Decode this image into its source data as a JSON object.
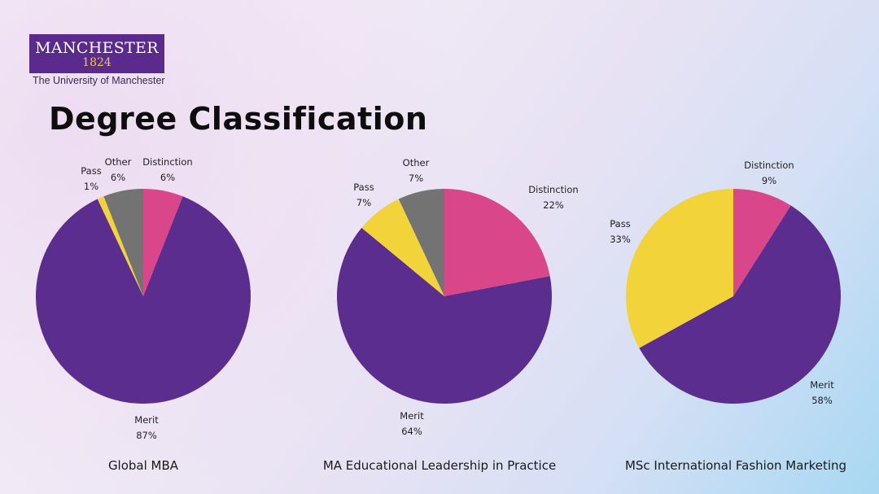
{
  "logo": {
    "word": "MANCHESTER",
    "year": "1824",
    "tagline": "The University of Manchester"
  },
  "title": "Degree Classification",
  "colors": {
    "Distinction": "#d9478a",
    "Merit": "#5b2d8e",
    "Pass": "#f2d33a",
    "Other": "#737373"
  },
  "chart_data": [
    {
      "type": "pie",
      "title": "Global MBA",
      "slices": [
        {
          "label": "Distinction",
          "value": 6,
          "text": "6%"
        },
        {
          "label": "Merit",
          "value": 87,
          "text": "87%"
        },
        {
          "label": "Pass",
          "value": 1,
          "text": "1%"
        },
        {
          "label": "Other",
          "value": 6,
          "text": "6%"
        }
      ]
    },
    {
      "type": "pie",
      "title": "MA Educational Leadership in Practice",
      "slices": [
        {
          "label": "Distinction",
          "value": 22,
          "text": "22%"
        },
        {
          "label": "Merit",
          "value": 64,
          "text": "64%"
        },
        {
          "label": "Pass",
          "value": 7,
          "text": "7%"
        },
        {
          "label": "Other",
          "value": 7,
          "text": "7%"
        }
      ]
    },
    {
      "type": "pie",
      "title": "MSc International Fashion Marketing",
      "slices": [
        {
          "label": "Distinction",
          "value": 9,
          "text": "9%"
        },
        {
          "label": "Merit",
          "value": 58,
          "text": "58%"
        },
        {
          "label": "Pass",
          "value": 33,
          "text": "33%"
        }
      ]
    }
  ]
}
